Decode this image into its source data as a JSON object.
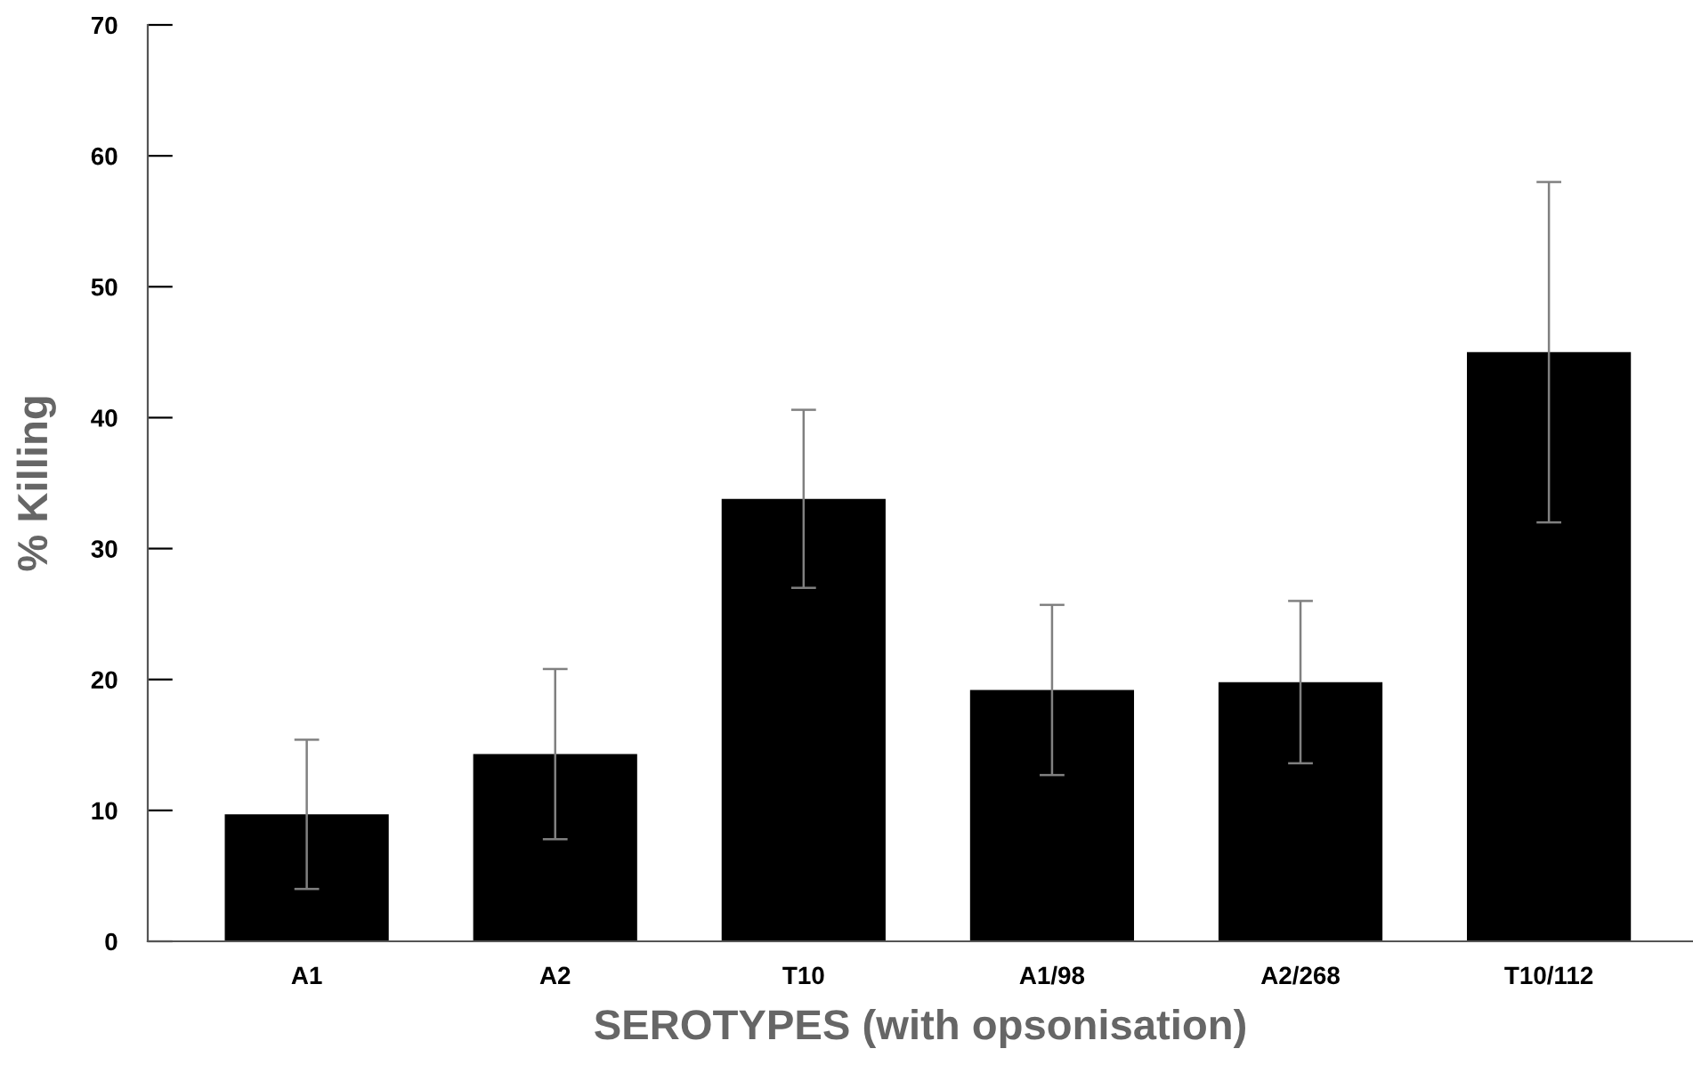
{
  "chart_data": {
    "type": "bar",
    "xlabel": "SEROTYPES (with opsonisation)",
    "ylabel": "% Killing",
    "categories": [
      "A1",
      "A2",
      "T10",
      "A1/98",
      "A2/268",
      "T10/112"
    ],
    "values": [
      9.7,
      14.3,
      33.8,
      19.2,
      19.8,
      45.0
    ],
    "errors": [
      5.7,
      6.5,
      6.8,
      6.5,
      6.2,
      13.0
    ],
    "color": "#000000",
    "ylim": [
      0,
      70
    ],
    "yticks": [
      0,
      10,
      20,
      30,
      40,
      50,
      60,
      70
    ],
    "grid": false
  }
}
